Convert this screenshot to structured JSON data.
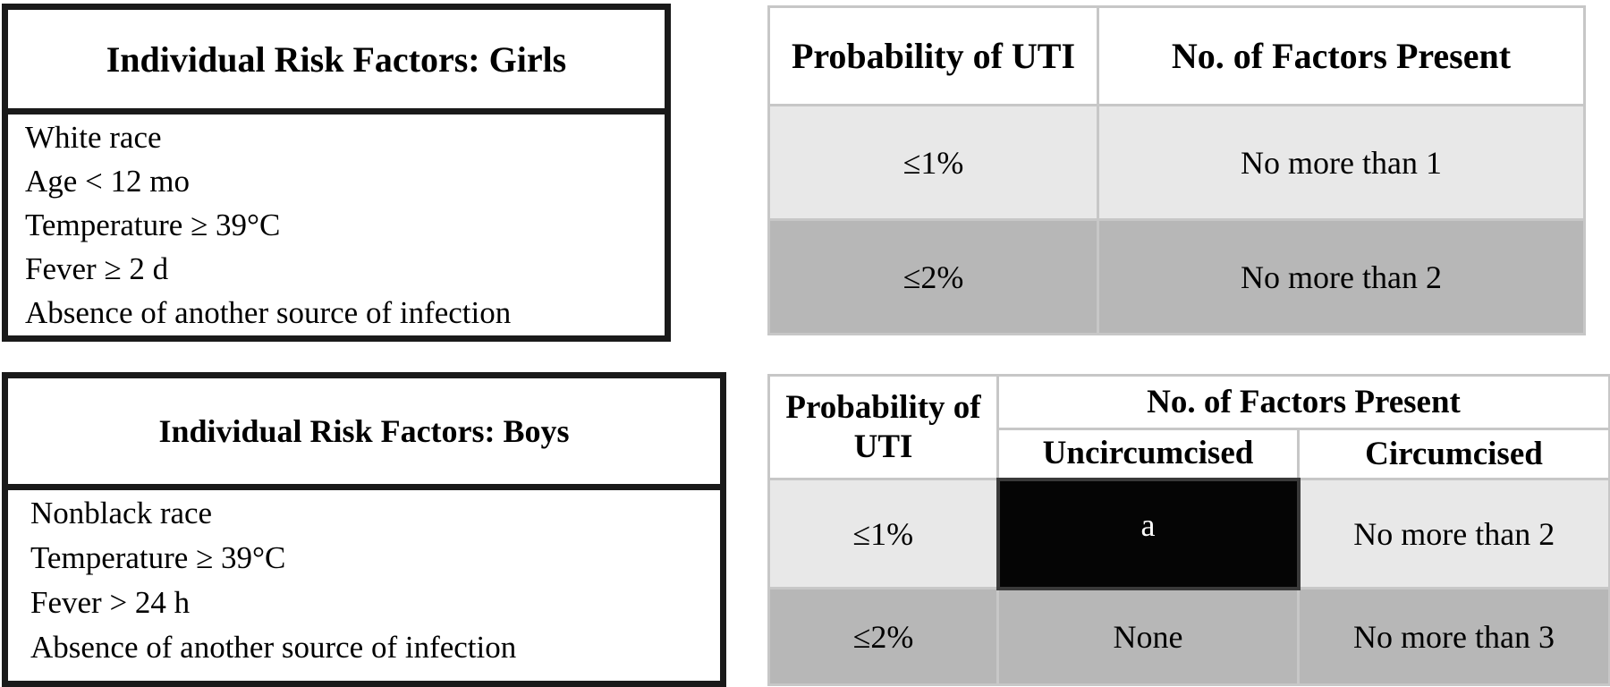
{
  "girls": {
    "title": "Individual Risk Factors: Girls",
    "factors": [
      "White race",
      "Age < 12 mo",
      "Temperature ≥ 39°C",
      "Fever ≥ 2 d",
      "Absence of another source of infection"
    ]
  },
  "boys": {
    "title": "Individual Risk Factors: Boys",
    "factors": [
      "Nonblack race",
      "Temperature ≥ 39°C",
      "Fever > 24 h",
      "Absence of another source of infection"
    ]
  },
  "girls_table": {
    "headers": [
      "Probability of UTI",
      "No. of Factors Present"
    ],
    "rows": [
      {
        "probability": "≤1%",
        "factors": "No more than 1"
      },
      {
        "probability": "≤2%",
        "factors": "No more than 2"
      }
    ]
  },
  "boys_table": {
    "header_probability": "Probability of UTI",
    "header_factors": "No. of Factors Present",
    "header_uncircumcised": "Uncircumcised",
    "header_circumcised": "Circumcised",
    "rows": [
      {
        "probability": "≤1%",
        "uncircumcised": "a",
        "circumcised": "No more than 2"
      },
      {
        "probability": "≤2%",
        "uncircumcised": "None",
        "circumcised": "No more than 3"
      }
    ]
  },
  "colors": {
    "light_row": "#e8e8e8",
    "dark_row": "#b7b7b7",
    "black_cell": "#050505"
  }
}
